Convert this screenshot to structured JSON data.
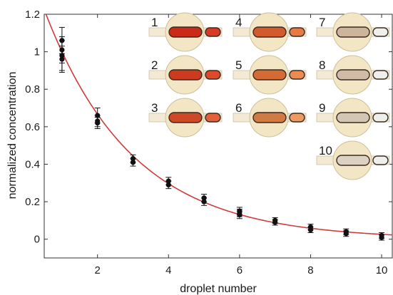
{
  "chart_data": {
    "type": "scatter",
    "xlabel": "droplet number",
    "ylabel": "normalized concentration",
    "xlim": [
      0.5,
      10.3
    ],
    "ylim": [
      -0.1,
      1.2
    ],
    "x_ticks": [
      "2",
      "4",
      "6",
      "8",
      "10"
    ],
    "y_ticks": [
      "0",
      "0.2",
      "0.4",
      "0.6",
      "0.8",
      "1",
      "1.2"
    ],
    "grid": false,
    "series": [
      {
        "kind": "points",
        "color": "#111111",
        "points": [
          {
            "x": 1,
            "y": 1.06,
            "err": 0.07
          },
          {
            "x": 1,
            "y": 1.01,
            "err": 0.07
          },
          {
            "x": 1,
            "y": 0.98,
            "err": 0.08
          },
          {
            "x": 1,
            "y": 0.96,
            "err": 0.07
          },
          {
            "x": 2,
            "y": 0.66,
            "err": 0.04
          },
          {
            "x": 2,
            "y": 0.63,
            "err": 0.03
          },
          {
            "x": 2,
            "y": 0.62,
            "err": 0.03
          },
          {
            "x": 3,
            "y": 0.43,
            "err": 0.02
          },
          {
            "x": 3,
            "y": 0.41,
            "err": 0.02
          },
          {
            "x": 4,
            "y": 0.31,
            "err": 0.02
          },
          {
            "x": 4,
            "y": 0.29,
            "err": 0.02
          },
          {
            "x": 5,
            "y": 0.22,
            "err": 0.02
          },
          {
            "x": 5,
            "y": 0.2,
            "err": 0.02
          },
          {
            "x": 6,
            "y": 0.15,
            "err": 0.02
          },
          {
            "x": 6,
            "y": 0.14,
            "err": 0.02
          },
          {
            "x": 6,
            "y": 0.13,
            "err": 0.02
          },
          {
            "x": 7,
            "y": 0.1,
            "err": 0.015
          },
          {
            "x": 7,
            "y": 0.09,
            "err": 0.015
          },
          {
            "x": 8,
            "y": 0.065,
            "err": 0.015
          },
          {
            "x": 8,
            "y": 0.05,
            "err": 0.015
          },
          {
            "x": 9,
            "y": 0.04,
            "err": 0.015
          },
          {
            "x": 9,
            "y": 0.03,
            "err": 0.015
          },
          {
            "x": 10,
            "y": 0.02,
            "err": 0.015
          },
          {
            "x": 10,
            "y": 0.01,
            "err": 0.015
          }
        ]
      },
      {
        "kind": "fit-curve",
        "color": "#d23b3b",
        "model": "a*exp(-b*x)",
        "a": 1.5,
        "b": 0.4055
      }
    ],
    "insets": [
      {
        "label": "1",
        "droplet": "#cc2a18",
        "trailing": "#d83a25"
      },
      {
        "label": "2",
        "droplet": "#cc3a20",
        "trailing": "#dc4a2a"
      },
      {
        "label": "3",
        "droplet": "#cd4824",
        "trailing": "#e2603a"
      },
      {
        "label": "4",
        "droplet": "#d25a2c",
        "trailing": "#e87a44"
      },
      {
        "label": "5",
        "droplet": "#d46a34",
        "trailing": "#ec8a50"
      },
      {
        "label": "6",
        "droplet": "#d07a44",
        "trailing": "#ee9a60"
      },
      {
        "label": "7",
        "droplet": "#cdb59c",
        "trailing": "#eeeeea"
      },
      {
        "label": "8",
        "droplet": "#d0bca6",
        "trailing": "#eeeeea"
      },
      {
        "label": "9",
        "droplet": "#d4c6b4",
        "trailing": "#eeeeea"
      },
      {
        "label": "10",
        "droplet": "#dcd2c4",
        "trailing": "#eeeeea"
      }
    ]
  }
}
